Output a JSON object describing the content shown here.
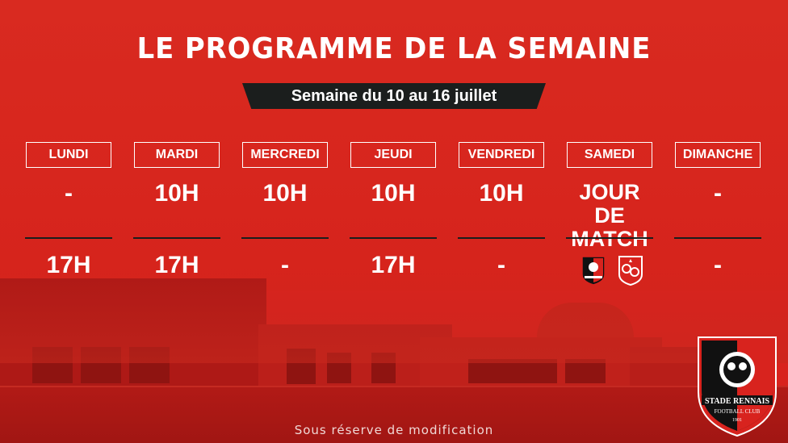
{
  "title": "LE PROGRAMME DE LA SEMAINE",
  "subtitle": "Semaine du 10 au 16 juillet",
  "days": [
    {
      "name": "LUNDI",
      "morning": "-",
      "afternoon": "17H"
    },
    {
      "name": "MARDI",
      "morning": "10H",
      "afternoon": "17H"
    },
    {
      "name": "MERCREDI",
      "morning": "10H",
      "afternoon": "-"
    },
    {
      "name": "JEUDI",
      "morning": "10H",
      "afternoon": "17H"
    },
    {
      "name": "VENDREDI",
      "morning": "10H",
      "afternoon": "-"
    },
    {
      "name": "SAMEDI",
      "morning_line1": "JOUR DE",
      "morning_line2": "MATCH",
      "afternoon_icons": [
        "stade-rennais-crest-icon",
        "stade-brestois-crest-icon"
      ]
    },
    {
      "name": "DIMANCHE",
      "morning": "-",
      "afternoon": "-"
    }
  ],
  "footer": "Sous réserve de modification",
  "logo": {
    "line1": "STADE RENNAIS",
    "line2": "FOOTBALL CLUB",
    "year": "1901"
  },
  "colors": {
    "background": "#d8231e",
    "dark": "#1b1e1d",
    "text": "#ffffff"
  }
}
